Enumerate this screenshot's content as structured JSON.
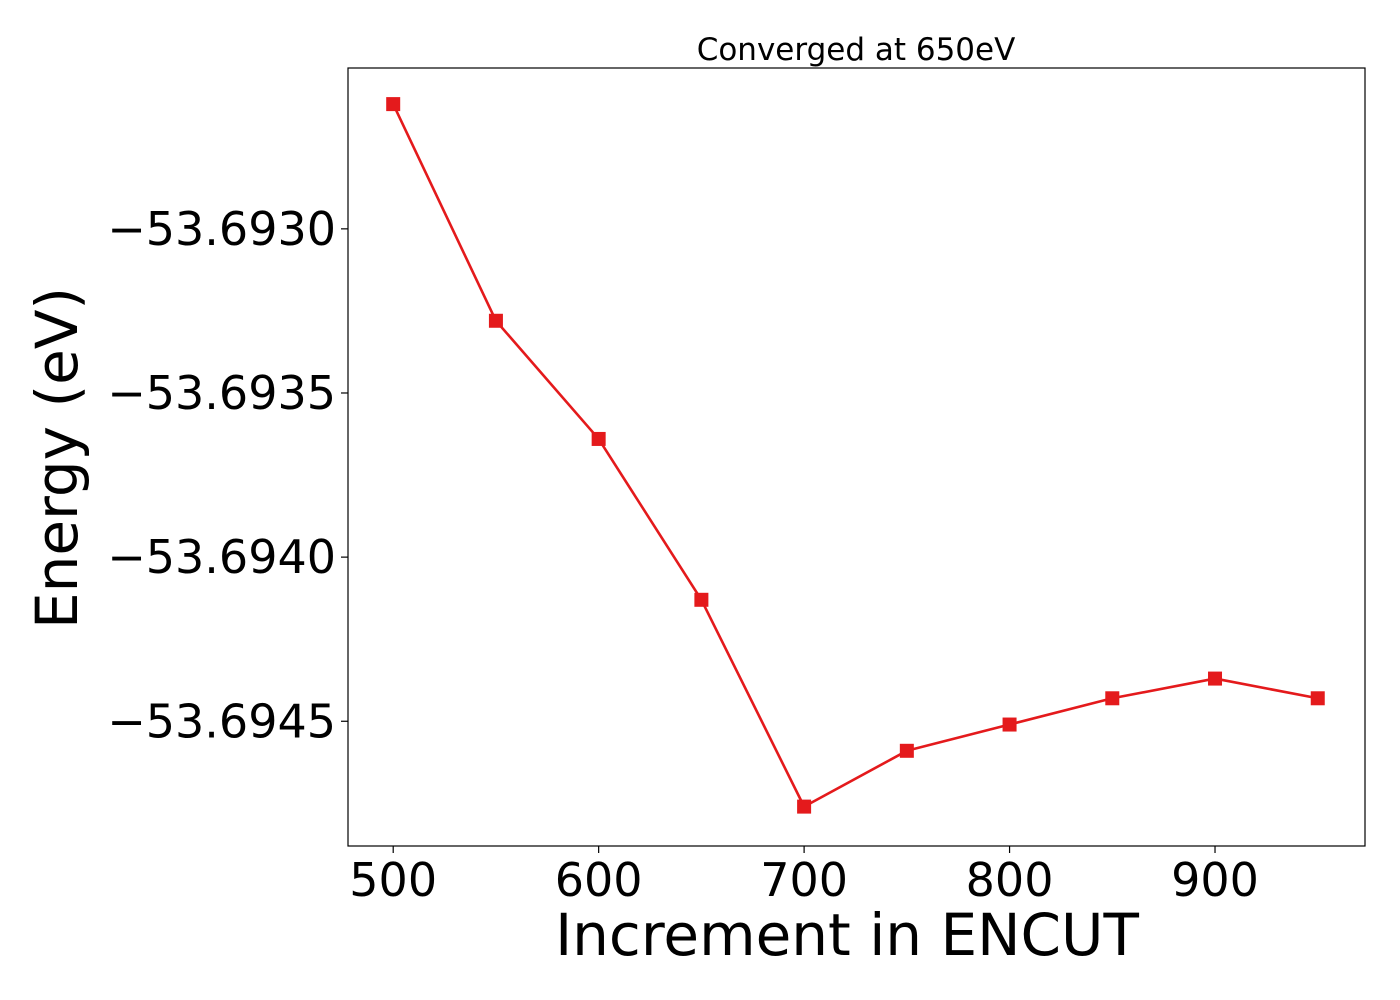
{
  "chart_data": {
    "type": "line",
    "title": "Converged at 650eV",
    "xlabel": "Increment in ENCUT",
    "ylabel": "Energy (eV)",
    "xlim": [
      478,
      973
    ],
    "ylim": [
      -53.69488,
      -53.69251
    ],
    "x_ticks": [
      500,
      600,
      700,
      800,
      900
    ],
    "x_tick_labels": [
      "500",
      "600",
      "700",
      "800",
      "900"
    ],
    "y_ticks": [
      -53.693,
      -53.6935,
      -53.694,
      -53.6945
    ],
    "y_tick_labels": [
      "−53.6930",
      "−53.6935",
      "−53.6940",
      "−53.6945"
    ],
    "grid": false,
    "legend": "none",
    "series": [
      {
        "color": "#e41a1c",
        "marker": "square",
        "x": [
          500,
          550,
          600,
          650,
          700,
          750,
          800,
          850,
          900,
          950
        ],
        "y": [
          -53.69262,
          -53.69328,
          -53.69364,
          -53.69413,
          -53.69476,
          -53.69459,
          -53.69451,
          -53.69443,
          -53.69437,
          -53.69443
        ]
      }
    ]
  }
}
